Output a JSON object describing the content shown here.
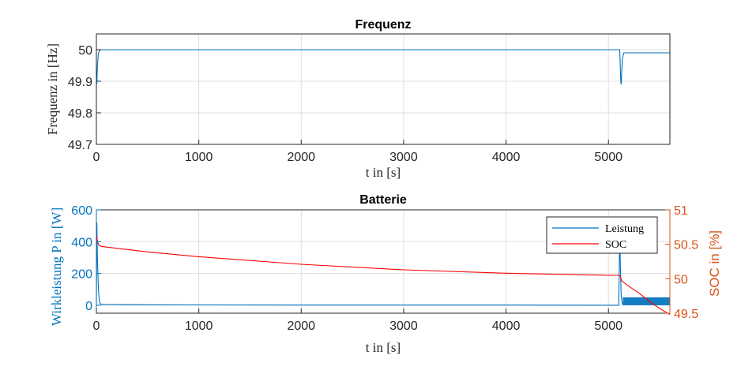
{
  "colors": {
    "blue": "#0072BD",
    "red": "#FF0000",
    "orange_axis": "#D95319",
    "axis": "#262626",
    "grid": "#DFDFDF"
  },
  "chart_data": [
    {
      "type": "line",
      "title": "Frequenz",
      "xlabel": "t in [s]",
      "ylabel": "Frequenz in [Hz]",
      "xlim": [
        0,
        5600
      ],
      "ylim": [
        49.7,
        50.05
      ],
      "xticks": [
        0,
        1000,
        2000,
        3000,
        4000,
        5000
      ],
      "yticks": [
        49.7,
        49.8,
        49.9,
        50
      ],
      "ytick_labels": [
        "49.7",
        "49.8",
        "49.9",
        "50"
      ],
      "grid": true,
      "series": [
        {
          "color": "#0072BD",
          "x": [
            0,
            5,
            10,
            20,
            40,
            60,
            100,
            500,
            1000,
            2000,
            3000,
            4000,
            5000,
            5100,
            5110,
            5120,
            5125,
            5135,
            5150,
            5200,
            5300,
            5600
          ],
          "y": [
            49.9,
            49.89,
            49.95,
            49.99,
            50.0,
            50.0,
            50.0,
            50.0,
            50.0,
            50.0,
            50.0,
            50.0,
            50.0,
            50.0,
            50.0,
            49.9,
            49.89,
            49.97,
            49.99,
            49.99,
            49.99,
            49.99
          ]
        }
      ]
    },
    {
      "type": "line",
      "title": "Batterie",
      "xlabel": "t in [s]",
      "ylabel": "Wirkleistung P in [W]",
      "y2label": "SOC in [%]",
      "xlim": [
        0,
        5600
      ],
      "ylim": [
        -50,
        600
      ],
      "y2lim": [
        49.5,
        51
      ],
      "xticks": [
        0,
        1000,
        2000,
        3000,
        4000,
        5000
      ],
      "yticks": [
        0,
        200,
        400,
        600
      ],
      "y2ticks": [
        49.5,
        50,
        50.5,
        51
      ],
      "y2tick_labels": [
        "49.5",
        "50",
        "50.5",
        "51"
      ],
      "grid": true,
      "legend_position": "top-right",
      "series": [
        {
          "name": "Leistung",
          "axis": "left",
          "color": "#0072BD",
          "x": [
            0,
            5,
            10,
            15,
            20,
            25,
            30,
            40,
            60,
            100,
            500,
            1000,
            2000,
            3000,
            4000,
            5000,
            5100,
            5105,
            5110,
            5115,
            5120,
            5125,
            5130,
            5135,
            5140
          ],
          "y": [
            0,
            520,
            300,
            200,
            100,
            60,
            20,
            8,
            6,
            5,
            3,
            2,
            1,
            1,
            1,
            0,
            0,
            200,
            500,
            300,
            150,
            60,
            30,
            10,
            5
          ]
        },
        {
          "name": "SOC",
          "axis": "right",
          "color": "#FF0000",
          "x": [
            0,
            10,
            20,
            30,
            50,
            100,
            500,
            1000,
            2000,
            3000,
            4000,
            5000,
            5100,
            5115,
            5130,
            5200,
            5300,
            5400,
            5500,
            5600
          ],
          "y": [
            50.65,
            50.55,
            50.5,
            50.48,
            50.47,
            50.46,
            50.39,
            50.32,
            50.21,
            50.13,
            50.08,
            50.05,
            50.05,
            50.04,
            49.97,
            49.89,
            49.79,
            49.67,
            49.57,
            49.48
          ]
        }
      ],
      "oscillation_band": {
        "x_start": 5140,
        "x_end": 5600,
        "y_low": 0,
        "y_high": 50
      }
    }
  ]
}
